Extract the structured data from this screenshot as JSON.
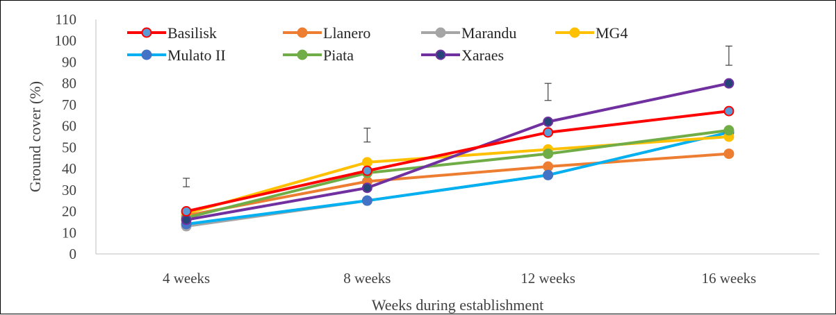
{
  "chart_data": {
    "type": "line",
    "title": "",
    "xlabel": "Weeks during establishment",
    "ylabel": "Ground cover (%)",
    "ylim": [
      0,
      110
    ],
    "yticks": [
      0,
      10,
      20,
      30,
      40,
      50,
      60,
      70,
      80,
      90,
      100,
      110
    ],
    "categories": [
      "4 weeks",
      "8 weeks",
      "12 weeks",
      "16 weeks"
    ],
    "grid": false,
    "legend_position": "top-left",
    "series": [
      {
        "name": "Basilisk",
        "color": "#FF0000",
        "marker_fill": "#5B9BD5",
        "values": [
          20,
          39,
          57,
          67
        ]
      },
      {
        "name": "Llanero",
        "color": "#ED7D31",
        "marker_fill": "#ED7D31",
        "values": [
          18,
          34,
          41,
          47
        ]
      },
      {
        "name": "Marandu",
        "color": "#A5A5A5",
        "marker_fill": "#A5A5A5",
        "values": [
          13,
          25,
          37,
          57
        ]
      },
      {
        "name": "MG4",
        "color": "#FFC000",
        "marker_fill": "#FFC000",
        "values": [
          19,
          43,
          49,
          55
        ]
      },
      {
        "name": "Mulato II",
        "color": "#4472C4",
        "marker_fill": "#4472C4",
        "values": [
          14,
          25,
          37,
          57
        ],
        "line_color": "#00B0F0"
      },
      {
        "name": "Piata",
        "color": "#70AD47",
        "marker_fill": "#70AD47",
        "values": [
          17,
          38,
          47,
          58
        ]
      },
      {
        "name": "Xaraes",
        "color": "#7030A0",
        "marker_fill": "#264478",
        "values": [
          16,
          31,
          62,
          80
        ]
      }
    ],
    "error_bars": [
      {
        "category": "4 weeks",
        "low": 31.5,
        "high": 35.5
      },
      {
        "category": "8 weeks",
        "low": 52.5,
        "high": 59
      },
      {
        "category": "12 weeks",
        "low": 72,
        "high": 80
      },
      {
        "category": "16 weeks",
        "low": 88.5,
        "high": 97.5
      }
    ]
  }
}
